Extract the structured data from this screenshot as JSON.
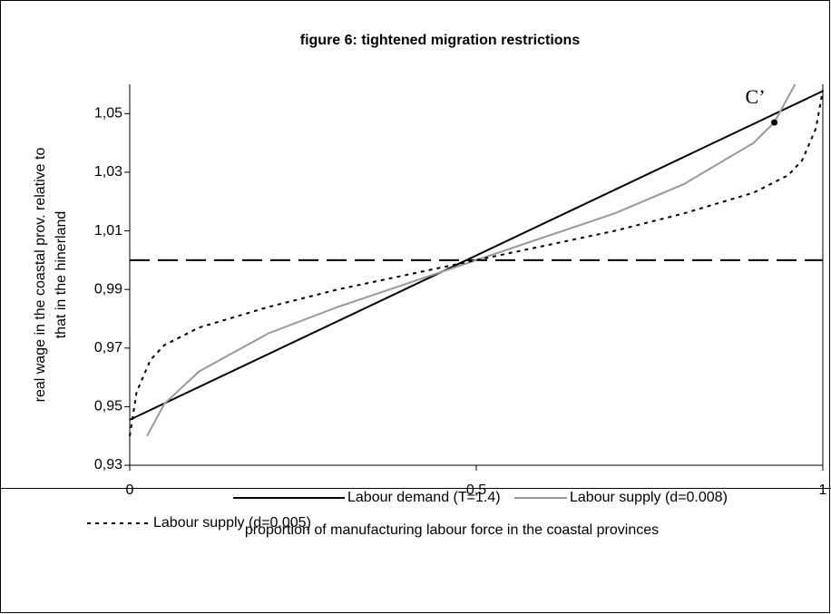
{
  "chart_data": {
    "type": "line",
    "title": "figure 6: tightened migration restrictions",
    "ylabel": [
      "real wage in the coastal prov. relative to",
      "that in the hinerland"
    ],
    "xlabel": "proportion of manufacturing labour force in the coastal provinces",
    "xlim": [
      0,
      1
    ],
    "ylim": [
      0.93,
      1.06
    ],
    "xticks": [
      0,
      {
        "value": 0.5,
        "label": "0,5"
      },
      1
    ],
    "yticks": [
      {
        "value": 0.93,
        "label": "0,93"
      },
      {
        "value": 0.95,
        "label": "0,95"
      },
      {
        "value": 0.97,
        "label": "0,97"
      },
      {
        "value": 0.99,
        "label": "0,99"
      },
      {
        "value": 1.01,
        "label": "1,01"
      },
      {
        "value": 1.03,
        "label": "1,03"
      },
      {
        "value": 1.05,
        "label": "1,05"
      }
    ],
    "hline": 1,
    "series": [
      {
        "name": "Labour demand (T=1.4)",
        "color": "#000000",
        "dash": "solid",
        "x": [
          0,
          1
        ],
        "values": [
          0.9455,
          1.0577
        ]
      },
      {
        "name": "Labour supply (d=0.008)",
        "color": "#999999",
        "dash": "solid",
        "x": [
          0.025,
          0.05,
          0.1,
          0.2,
          0.3,
          0.4,
          0.5,
          0.6,
          0.7,
          0.8,
          0.9,
          0.93,
          0.96
        ],
        "values": [
          0.94,
          0.951,
          0.962,
          0.975,
          0.984,
          0.992,
          1.0,
          1.008,
          1.016,
          1.026,
          1.04,
          1.047,
          1.06
        ]
      },
      {
        "name": "Labour supply (d=0.005)",
        "color": "#000000",
        "dash": "dotted",
        "x": [
          0,
          0.01,
          0.03,
          0.05,
          0.1,
          0.2,
          0.3,
          0.4,
          0.5,
          0.6,
          0.7,
          0.8,
          0.9,
          0.95,
          0.97,
          0.99,
          1
        ],
        "values": [
          0.94,
          0.955,
          0.966,
          0.971,
          0.977,
          0.984,
          0.99,
          0.995,
          1.0,
          1.005,
          1.01,
          1.016,
          1.023,
          1.029,
          1.034,
          1.045,
          1.058
        ]
      }
    ],
    "annotations": [
      {
        "text": "C’",
        "x": 0.93,
        "y": 1.047
      }
    ]
  }
}
